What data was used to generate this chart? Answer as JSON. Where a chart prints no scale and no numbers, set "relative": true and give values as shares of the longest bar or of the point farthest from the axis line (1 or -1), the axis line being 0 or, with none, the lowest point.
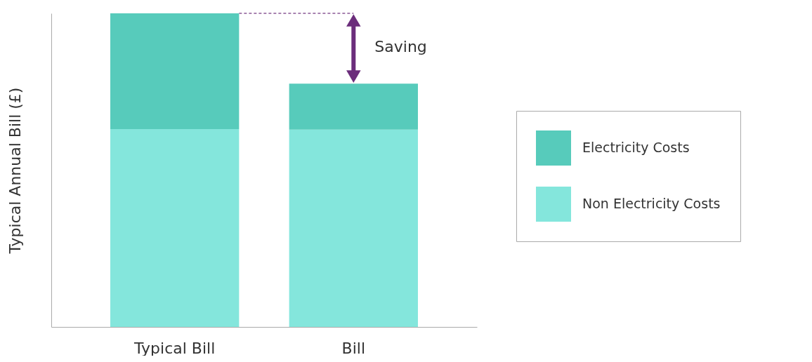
{
  "chart_data": {
    "type": "bar",
    "relative": true,
    "stacked": true,
    "ylabel": "Typical Annual Bill (£)",
    "categories": [
      "Typical Bill",
      "Bill"
    ],
    "series": [
      {
        "name": "Non Electricity Costs",
        "color": "#84e6dc",
        "values": [
          0.631,
          0.629
        ]
      },
      {
        "name": "Electricity Costs",
        "color": "#57cbbb",
        "values": [
          0.369,
          0.147
        ]
      }
    ],
    "annotations": [
      "Saving"
    ],
    "legend": "right",
    "grid": false
  }
}
